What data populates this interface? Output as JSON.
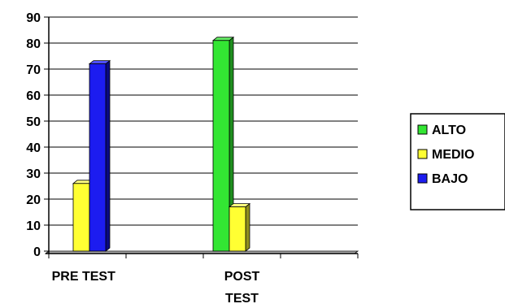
{
  "chart_data": {
    "type": "bar",
    "categories": [
      "PRE TEST",
      "POST TEST"
    ],
    "category_lines": [
      [
        "PRE TEST"
      ],
      [
        "POST",
        "TEST"
      ]
    ],
    "series": [
      {
        "name": "ALTO",
        "values": [
          0,
          81
        ],
        "color": "#33e633",
        "side_color": "#1f8f1f",
        "top_color": "#66f066"
      },
      {
        "name": "MEDIO",
        "values": [
          26,
          17
        ],
        "color": "#ffff33",
        "side_color": "#8f8f1f",
        "top_color": "#ffff80"
      },
      {
        "name": "BAJO",
        "values": [
          72,
          0
        ],
        "color": "#1c1cf0",
        "side_color": "#0a0a80",
        "top_color": "#5050ff"
      }
    ],
    "yticks": [
      0,
      10,
      20,
      30,
      40,
      50,
      60,
      70,
      80,
      90
    ],
    "ylim": [
      0,
      90
    ],
    "grid": true,
    "legend_position": "right",
    "title": "",
    "xlabel": "",
    "ylabel": ""
  }
}
